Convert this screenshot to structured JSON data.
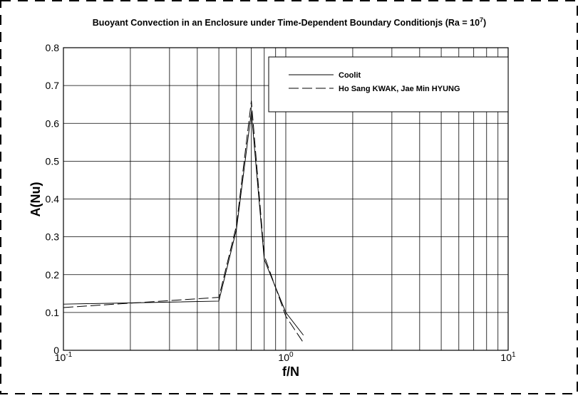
{
  "chart_data": {
    "type": "line",
    "title": "Buoyant Convection in an Enclosure under Time-Dependent Boundary Conditionjs (Ra = 10",
    "title_superscript": "7",
    "title_end": ")",
    "x_label": "f/N",
    "y_label": "A(Nu)",
    "log_x": true,
    "grid": true,
    "xlim": [
      0.1,
      10
    ],
    "xticks": [
      {
        "value": 0.1,
        "label": "10",
        "exponent": "-1"
      },
      {
        "value": 1,
        "label": "10",
        "exponent": "0"
      },
      {
        "value": 10,
        "label": "10",
        "exponent": "1"
      }
    ],
    "xminor": [
      0.2,
      0.3,
      0.4,
      0.5,
      0.6,
      0.7,
      0.8,
      0.9,
      2,
      3,
      4,
      5,
      6,
      7,
      8,
      9
    ],
    "ylim": [
      0,
      0.8
    ],
    "yticks": [
      0,
      0.1,
      0.2,
      0.3,
      0.4,
      0.5,
      0.6,
      0.7,
      0.8
    ],
    "legend": "top-right",
    "series": [
      {
        "name": "Coolit",
        "color": "#000000",
        "dash": "solid",
        "x": [
          0.1,
          0.5,
          0.6,
          0.7,
          0.8,
          1.0,
          1.2
        ],
        "values": [
          0.122,
          0.13,
          0.32,
          0.63,
          0.24,
          0.1,
          0.04
        ]
      },
      {
        "name": "Ho Sang KWAK, Jae Min HYUNG",
        "color": "#000000",
        "dash": "dashed",
        "x": [
          0.1,
          0.5,
          0.6,
          0.7,
          0.8,
          1.0,
          1.2
        ],
        "values": [
          0.113,
          0.14,
          0.33,
          0.66,
          0.25,
          0.09,
          0.02
        ]
      }
    ]
  }
}
